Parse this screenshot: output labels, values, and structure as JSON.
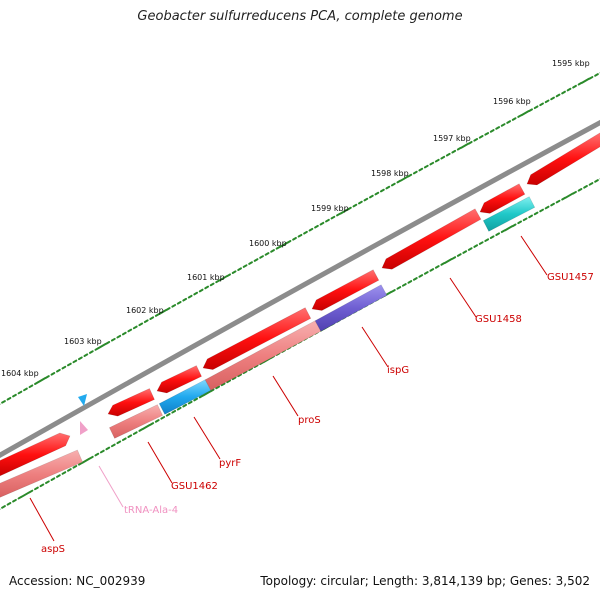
{
  "title": "Geobacter sulfurreducens PCA, complete genome",
  "footer": {
    "accession": "Accession: NC_002939",
    "topology": "Topology: circular; Length: 3,814,139 bp; Genes: 3,502"
  },
  "colors": {
    "backbone": "#8c8c8c",
    "cds_strand": "#ff1a1a",
    "cds_fill": "#f08080",
    "ispG": "#7060d0",
    "pyrF": "#22aaee",
    "GSU1457": "#20c8c8",
    "trna": "#f0a0c8",
    "tick": "#2a8a2a"
  },
  "tick_labels": [
    "1595 kbp",
    "1596 kbp",
    "1597 kbp",
    "1598 kbp",
    "1599 kbp",
    "1600 kbp",
    "1601 kbp",
    "1602 kbp",
    "1603 kbp",
    "1604 kbp"
  ],
  "genes": [
    {
      "label": "GSU1457",
      "color": "#cc0000"
    },
    {
      "label": "GSU1458",
      "color": "#cc0000"
    },
    {
      "label": "ispG",
      "color": "#cc0000"
    },
    {
      "label": "proS",
      "color": "#cc0000"
    },
    {
      "label": "pyrF",
      "color": "#cc0000"
    },
    {
      "label": "GSU1462",
      "color": "#cc0000"
    },
    {
      "label": "tRNA-Ala-4",
      "color": "#f090c0"
    },
    {
      "label": "aspS",
      "color": "#cc0000"
    }
  ]
}
